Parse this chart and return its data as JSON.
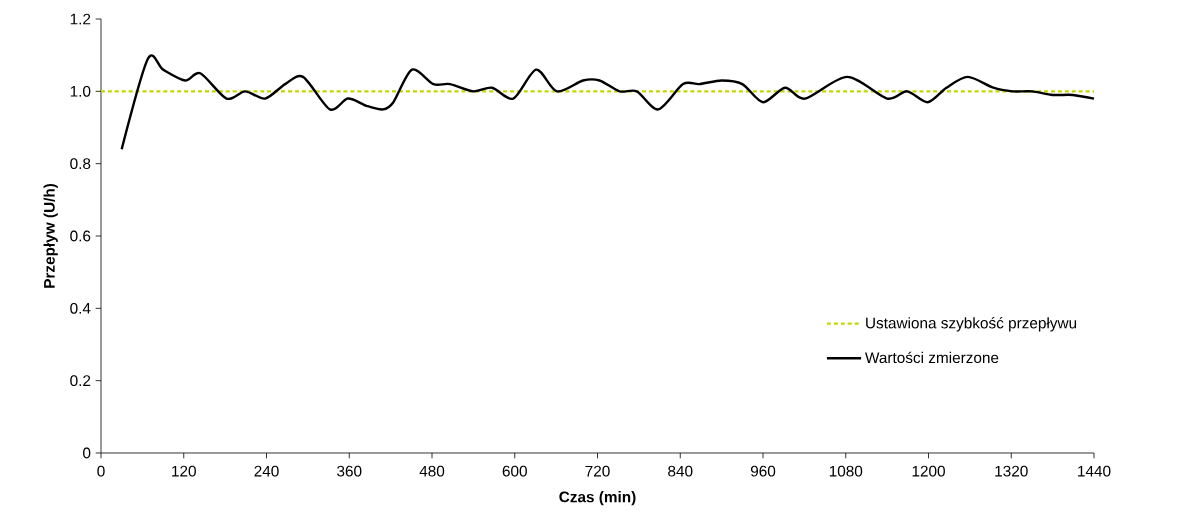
{
  "chart_data": {
    "type": "line",
    "xlabel": "Czas (min)",
    "ylabel": "Przepływ (U/h)",
    "xlim": [
      0,
      1440
    ],
    "xticks": [
      0,
      120,
      240,
      360,
      480,
      600,
      720,
      840,
      960,
      1080,
      1200,
      1320,
      1440
    ],
    "ylim": [
      0,
      1.2
    ],
    "yticks": [
      0,
      0.2,
      0.4,
      0.6,
      0.8,
      {
        "value": 1.0,
        "label": "1.0"
      },
      1.2
    ],
    "legend": "bottom right",
    "grid": false,
    "marker": "none",
    "series": [
      {
        "name": "Ustawiona szybkość przepływu",
        "color": "#c3d600",
        "line_style": "dotted",
        "x": [
          0,
          1440
        ],
        "values": [
          1.0,
          1.0
        ]
      },
      {
        "name": "Wartości zmierzone",
        "color": "#000000",
        "line_style": "solid",
        "x": [
          30,
          68,
          90,
          122,
          144,
          182,
          209,
          238,
          267,
          293,
          332,
          358,
          385,
          409,
          424,
          451,
          482,
          506,
          540,
          567,
          598,
          631,
          661,
          699,
          723,
          752,
          777,
          808,
          844,
          868,
          900,
          930,
          960,
          992,
          1021,
          1082,
          1140,
          1169,
          1199,
          1226,
          1257,
          1294,
          1322,
          1350,
          1380,
          1409,
          1440
        ],
        "values": [
          0.84,
          1.09,
          1.06,
          1.03,
          1.05,
          0.98,
          1.0,
          0.98,
          1.02,
          1.04,
          0.95,
          0.98,
          0.96,
          0.95,
          0.97,
          1.06,
          1.02,
          1.02,
          1.0,
          1.01,
          0.98,
          1.06,
          1.0,
          1.03,
          1.03,
          1.0,
          1.0,
          0.95,
          1.02,
          1.02,
          1.03,
          1.02,
          0.97,
          1.01,
          0.98,
          1.04,
          0.98,
          1.0,
          0.97,
          1.01,
          1.04,
          1.01,
          1.0,
          1.0,
          0.99,
          0.99,
          0.98
        ]
      }
    ]
  }
}
